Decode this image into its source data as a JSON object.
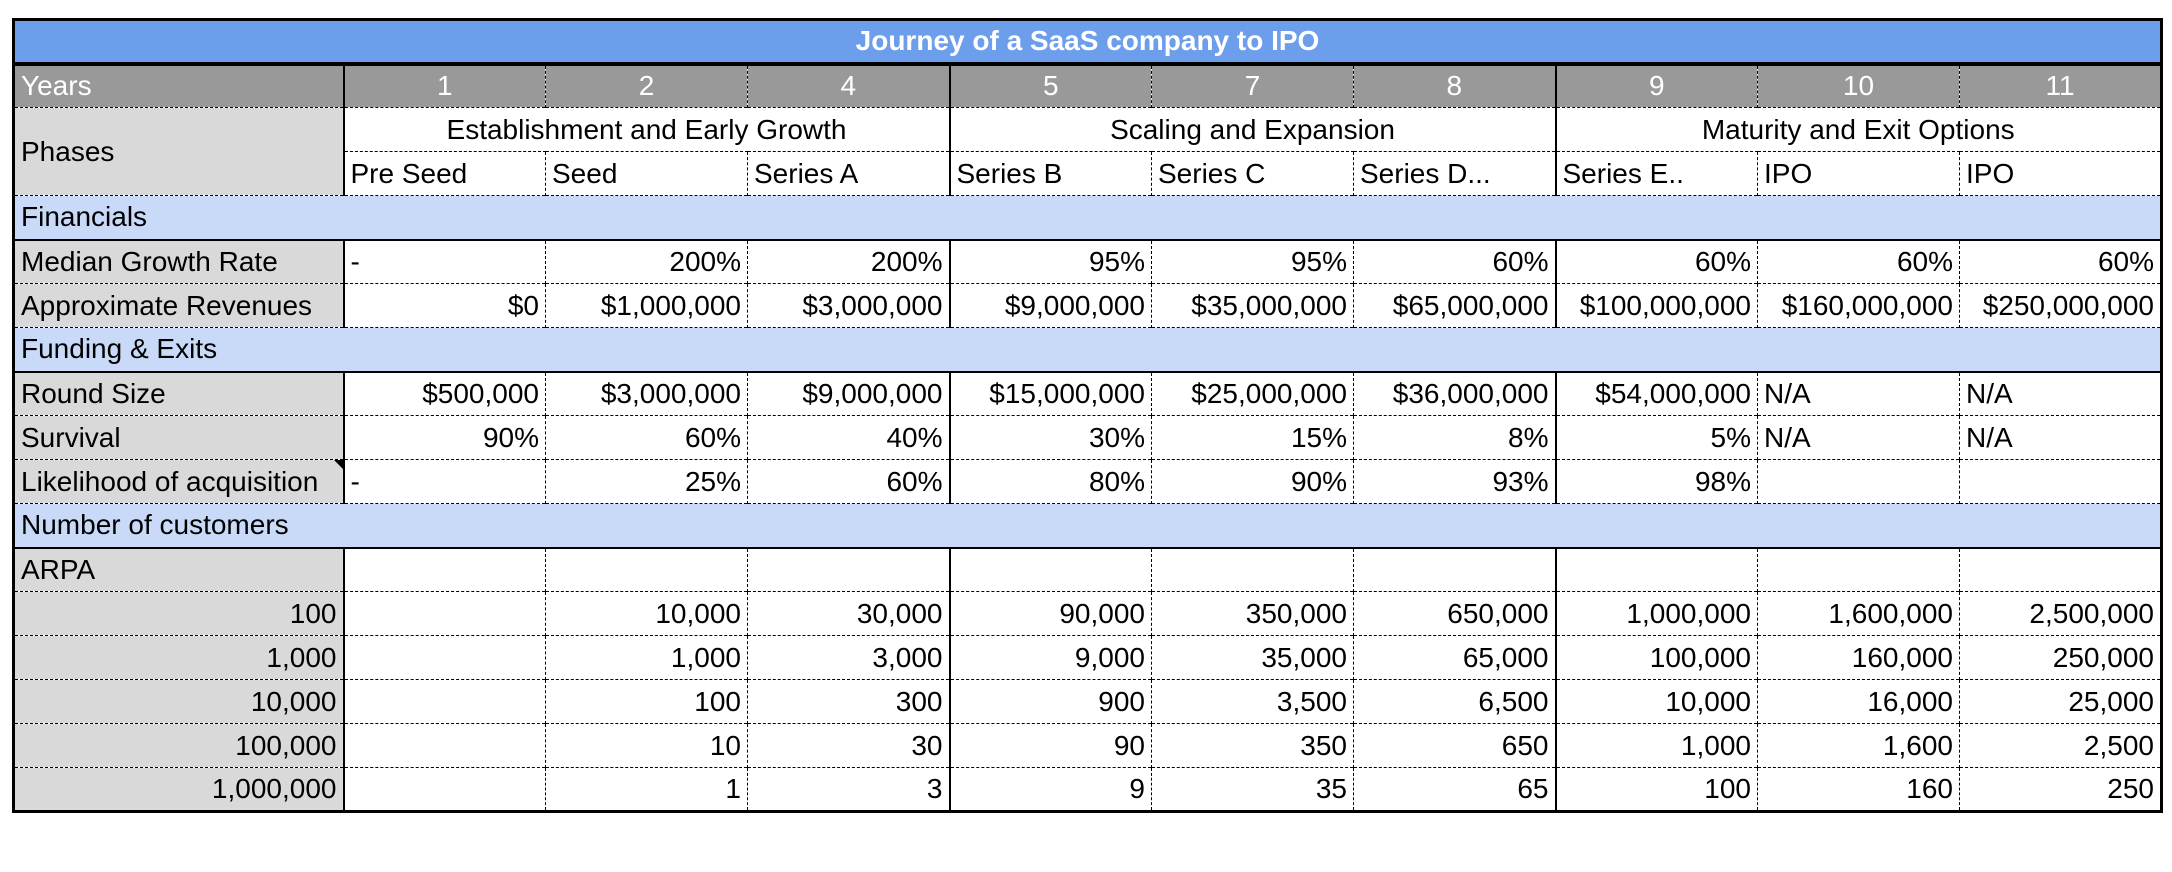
{
  "title": "Journey of a SaaS company to IPO",
  "years_label": "Years",
  "years": [
    "1",
    "2",
    "4",
    "5",
    "7",
    "8",
    "9",
    "10",
    "11"
  ],
  "phases_label": "Phases",
  "phase_groups": [
    "Establishment and Early Growth",
    "Scaling and Expansion",
    "Maturity and Exit Options"
  ],
  "stages": [
    "Pre Seed",
    "Seed",
    "Series A",
    "Series B",
    "Series C",
    "Series D...",
    "Series E..",
    "IPO",
    "IPO"
  ],
  "sections": {
    "financials": "Financials",
    "funding": "Funding & Exits",
    "customers": "Number of customers"
  },
  "financial_rows": [
    {
      "label": "Median Growth Rate",
      "values": [
        "-",
        "200%",
        "200%",
        "95%",
        "95%",
        "60%",
        "60%",
        "60%",
        "60%"
      ]
    },
    {
      "label": "Approximate Revenues",
      "values": [
        "$0",
        "$1,000,000",
        "$3,000,000",
        "$9,000,000",
        "$35,000,000",
        "$65,000,000",
        "$100,000,000",
        "$160,000,000",
        "$250,000,000"
      ]
    }
  ],
  "funding_rows": [
    {
      "label": "Round Size",
      "values": [
        "$500,000",
        "$3,000,000",
        "$9,000,000",
        "$15,000,000",
        "$25,000,000",
        "$36,000,000",
        "$54,000,000",
        "N/A",
        "N/A"
      ]
    },
    {
      "label": "Survival",
      "values": [
        "90%",
        "60%",
        "40%",
        "30%",
        "15%",
        "8%",
        "5%",
        "N/A",
        "N/A"
      ]
    },
    {
      "label": "Likelihood of acquisition",
      "values": [
        "-",
        "25%",
        "60%",
        "80%",
        "90%",
        "93%",
        "98%",
        "",
        ""
      ]
    }
  ],
  "arpa_label": "ARPA",
  "customer_rows": [
    {
      "label": "100",
      "values": [
        "",
        "10,000",
        "30,000",
        "90,000",
        "350,000",
        "650,000",
        "1,000,000",
        "1,600,000",
        "2,500,000"
      ]
    },
    {
      "label": "1,000",
      "values": [
        "",
        "1,000",
        "3,000",
        "9,000",
        "35,000",
        "65,000",
        "100,000",
        "160,000",
        "250,000"
      ]
    },
    {
      "label": "10,000",
      "values": [
        "",
        "100",
        "300",
        "900",
        "3,500",
        "6,500",
        "10,000",
        "16,000",
        "25,000"
      ]
    },
    {
      "label": "100,000",
      "values": [
        "",
        "10",
        "30",
        "90",
        "350",
        "650",
        "1,000",
        "1,600",
        "2,500"
      ]
    },
    {
      "label": "1,000,000",
      "values": [
        "",
        "1",
        "3",
        "9",
        "35",
        "65",
        "100",
        "160",
        "250"
      ]
    }
  ]
}
